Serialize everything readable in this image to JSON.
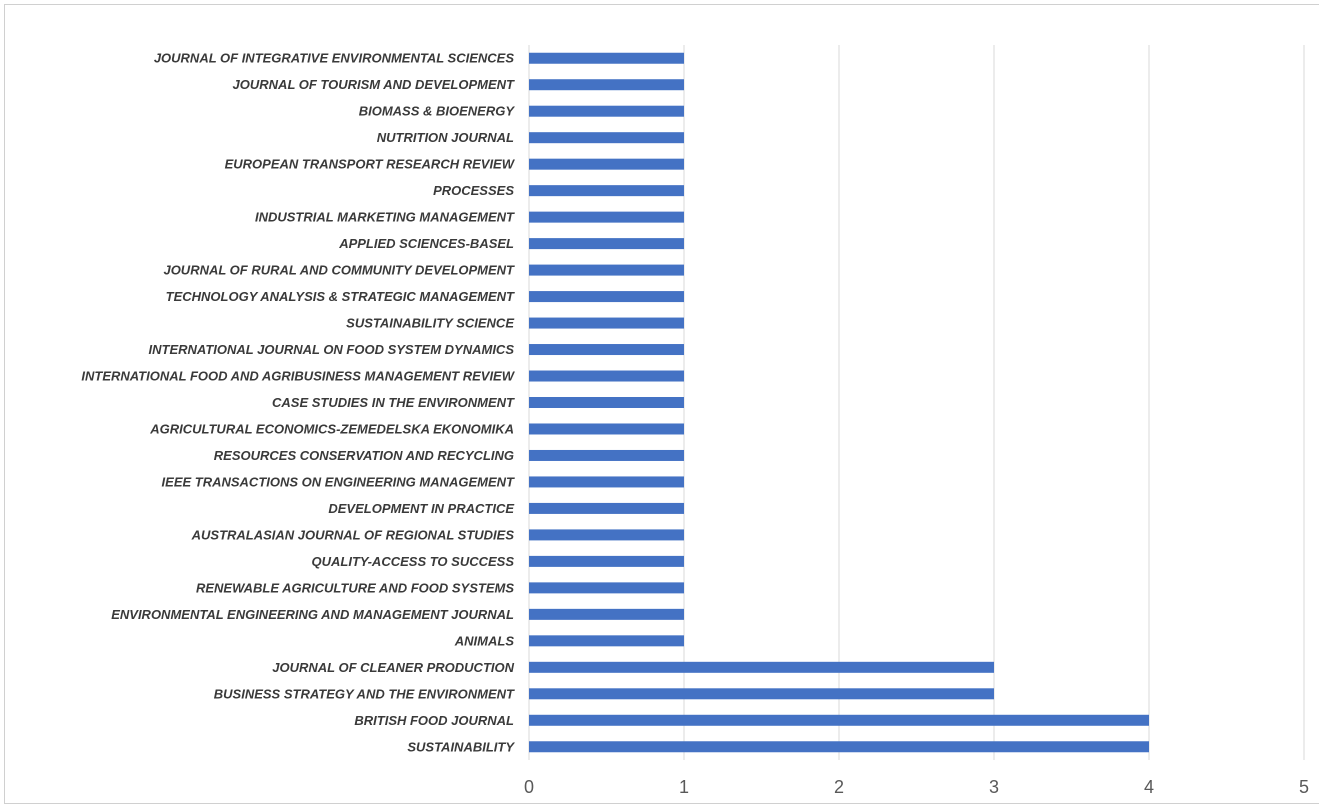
{
  "chart_data": {
    "type": "bar",
    "orientation": "horizontal",
    "categories": [
      "SUSTAINABILITY",
      "BRITISH FOOD JOURNAL",
      "BUSINESS STRATEGY AND THE ENVIRONMENT",
      "JOURNAL OF CLEANER PRODUCTION",
      "ANIMALS",
      "ENVIRONMENTAL ENGINEERING AND MANAGEMENT JOURNAL",
      "RENEWABLE AGRICULTURE AND FOOD SYSTEMS",
      "QUALITY-ACCESS TO SUCCESS",
      "AUSTRALASIAN JOURNAL OF REGIONAL STUDIES",
      "DEVELOPMENT IN PRACTICE",
      "IEEE TRANSACTIONS ON ENGINEERING MANAGEMENT",
      "RESOURCES CONSERVATION AND RECYCLING",
      "AGRICULTURAL ECONOMICS-ZEMEDELSKA EKONOMIKA",
      "CASE STUDIES IN THE ENVIRONMENT",
      "INTERNATIONAL FOOD AND AGRIBUSINESS MANAGEMENT REVIEW",
      "INTERNATIONAL JOURNAL ON FOOD SYSTEM DYNAMICS",
      "SUSTAINABILITY SCIENCE",
      "TECHNOLOGY ANALYSIS & STRATEGIC MANAGEMENT",
      "JOURNAL OF RURAL AND COMMUNITY DEVELOPMENT",
      "APPLIED SCIENCES-BASEL",
      "INDUSTRIAL MARKETING MANAGEMENT",
      "PROCESSES",
      "EUROPEAN TRANSPORT RESEARCH REVIEW",
      "NUTRITION JOURNAL",
      "BIOMASS & BIOENERGY",
      "JOURNAL OF TOURISM AND DEVELOPMENT",
      "JOURNAL OF INTEGRATIVE ENVIRONMENTAL SCIENCES"
    ],
    "values": [
      4,
      4,
      3,
      3,
      1,
      1,
      1,
      1,
      1,
      1,
      1,
      1,
      1,
      1,
      1,
      1,
      1,
      1,
      1,
      1,
      1,
      1,
      1,
      1,
      1,
      1,
      1
    ],
    "xlim": [
      0,
      5
    ],
    "xticks": [
      "0",
      "1",
      "2",
      "3",
      "4",
      "5"
    ],
    "title": "",
    "xlabel": "",
    "ylabel": "",
    "grid": "vertical",
    "bar_color": "#4472c4"
  }
}
